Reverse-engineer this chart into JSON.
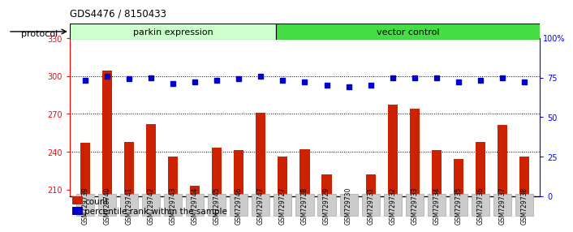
{
  "title": "GDS4476 / 8150433",
  "samples": [
    "GSM729739",
    "GSM729740",
    "GSM729741",
    "GSM729742",
    "GSM729743",
    "GSM729744",
    "GSM729745",
    "GSM729746",
    "GSM729747",
    "GSM729727",
    "GSM729728",
    "GSM729729",
    "GSM729730",
    "GSM729731",
    "GSM729732",
    "GSM729733",
    "GSM729734",
    "GSM729735",
    "GSM729736",
    "GSM729737",
    "GSM729738"
  ],
  "count_values": [
    247,
    304,
    248,
    262,
    236,
    213,
    243,
    241,
    271,
    236,
    242,
    222,
    206,
    222,
    277,
    274,
    241,
    234,
    248,
    261,
    236
  ],
  "percentile_values": [
    73,
    76,
    74,
    75,
    71,
    72,
    73,
    74,
    76,
    73,
    72,
    70,
    69,
    70,
    75,
    75,
    75,
    72,
    73,
    75,
    72
  ],
  "bar_color": "#cc2200",
  "dot_color": "#0000cc",
  "ylim_left": [
    205,
    330
  ],
  "ylim_right": [
    0,
    100
  ],
  "yticks_left": [
    210,
    240,
    270,
    300,
    330
  ],
  "yticks_right": [
    0,
    25,
    50,
    75
  ],
  "group1_label": "parkin expression",
  "group1_count": 9,
  "group2_label": "vector control",
  "group2_count": 12,
  "group1_color": "#ccffcc",
  "group2_color": "#44dd44",
  "protocol_label": "protocol",
  "legend_count_label": "count",
  "legend_percentile_label": "percentile rank within the sample",
  "background_color": "#ffffff",
  "tick_bg_color": "#cccccc",
  "dotted_line_color": "#000000"
}
